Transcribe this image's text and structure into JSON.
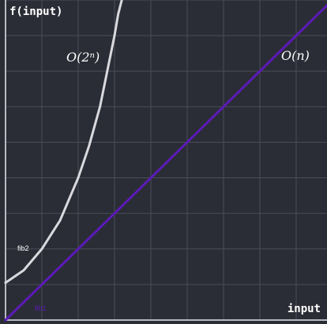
{
  "chart_data": {
    "type": "line",
    "ylabel": "f(input)",
    "xlabel": "input",
    "xlim": [
      0,
      9
    ],
    "ylim": [
      0,
      9
    ],
    "x_ticks": [
      0,
      1,
      2,
      3,
      4,
      5,
      6,
      7,
      8,
      9
    ],
    "y_ticks": [
      0,
      1,
      2,
      3,
      4,
      5,
      6,
      7,
      8,
      9
    ],
    "grid": true,
    "series": [
      {
        "name": "fib2",
        "color": "#d9d9de",
        "x": [
          0,
          0.5,
          1.0,
          1.5,
          2.0,
          2.3,
          2.6,
          2.8,
          3.0,
          3.1,
          3.2
        ],
        "y": [
          1.05,
          1.4,
          2.0,
          2.8,
          4.0,
          4.9,
          6.0,
          7.0,
          8.0,
          8.6,
          9.0
        ]
      },
      {
        "name": "fib1",
        "color": "#5b1ab8",
        "x": [
          0,
          9
        ],
        "y": [
          0,
          9
        ]
      }
    ],
    "annotations": [
      {
        "text": "O(2ⁿ)",
        "series": "fib2"
      },
      {
        "text": "O(n)",
        "series": "fib1"
      }
    ]
  }
}
